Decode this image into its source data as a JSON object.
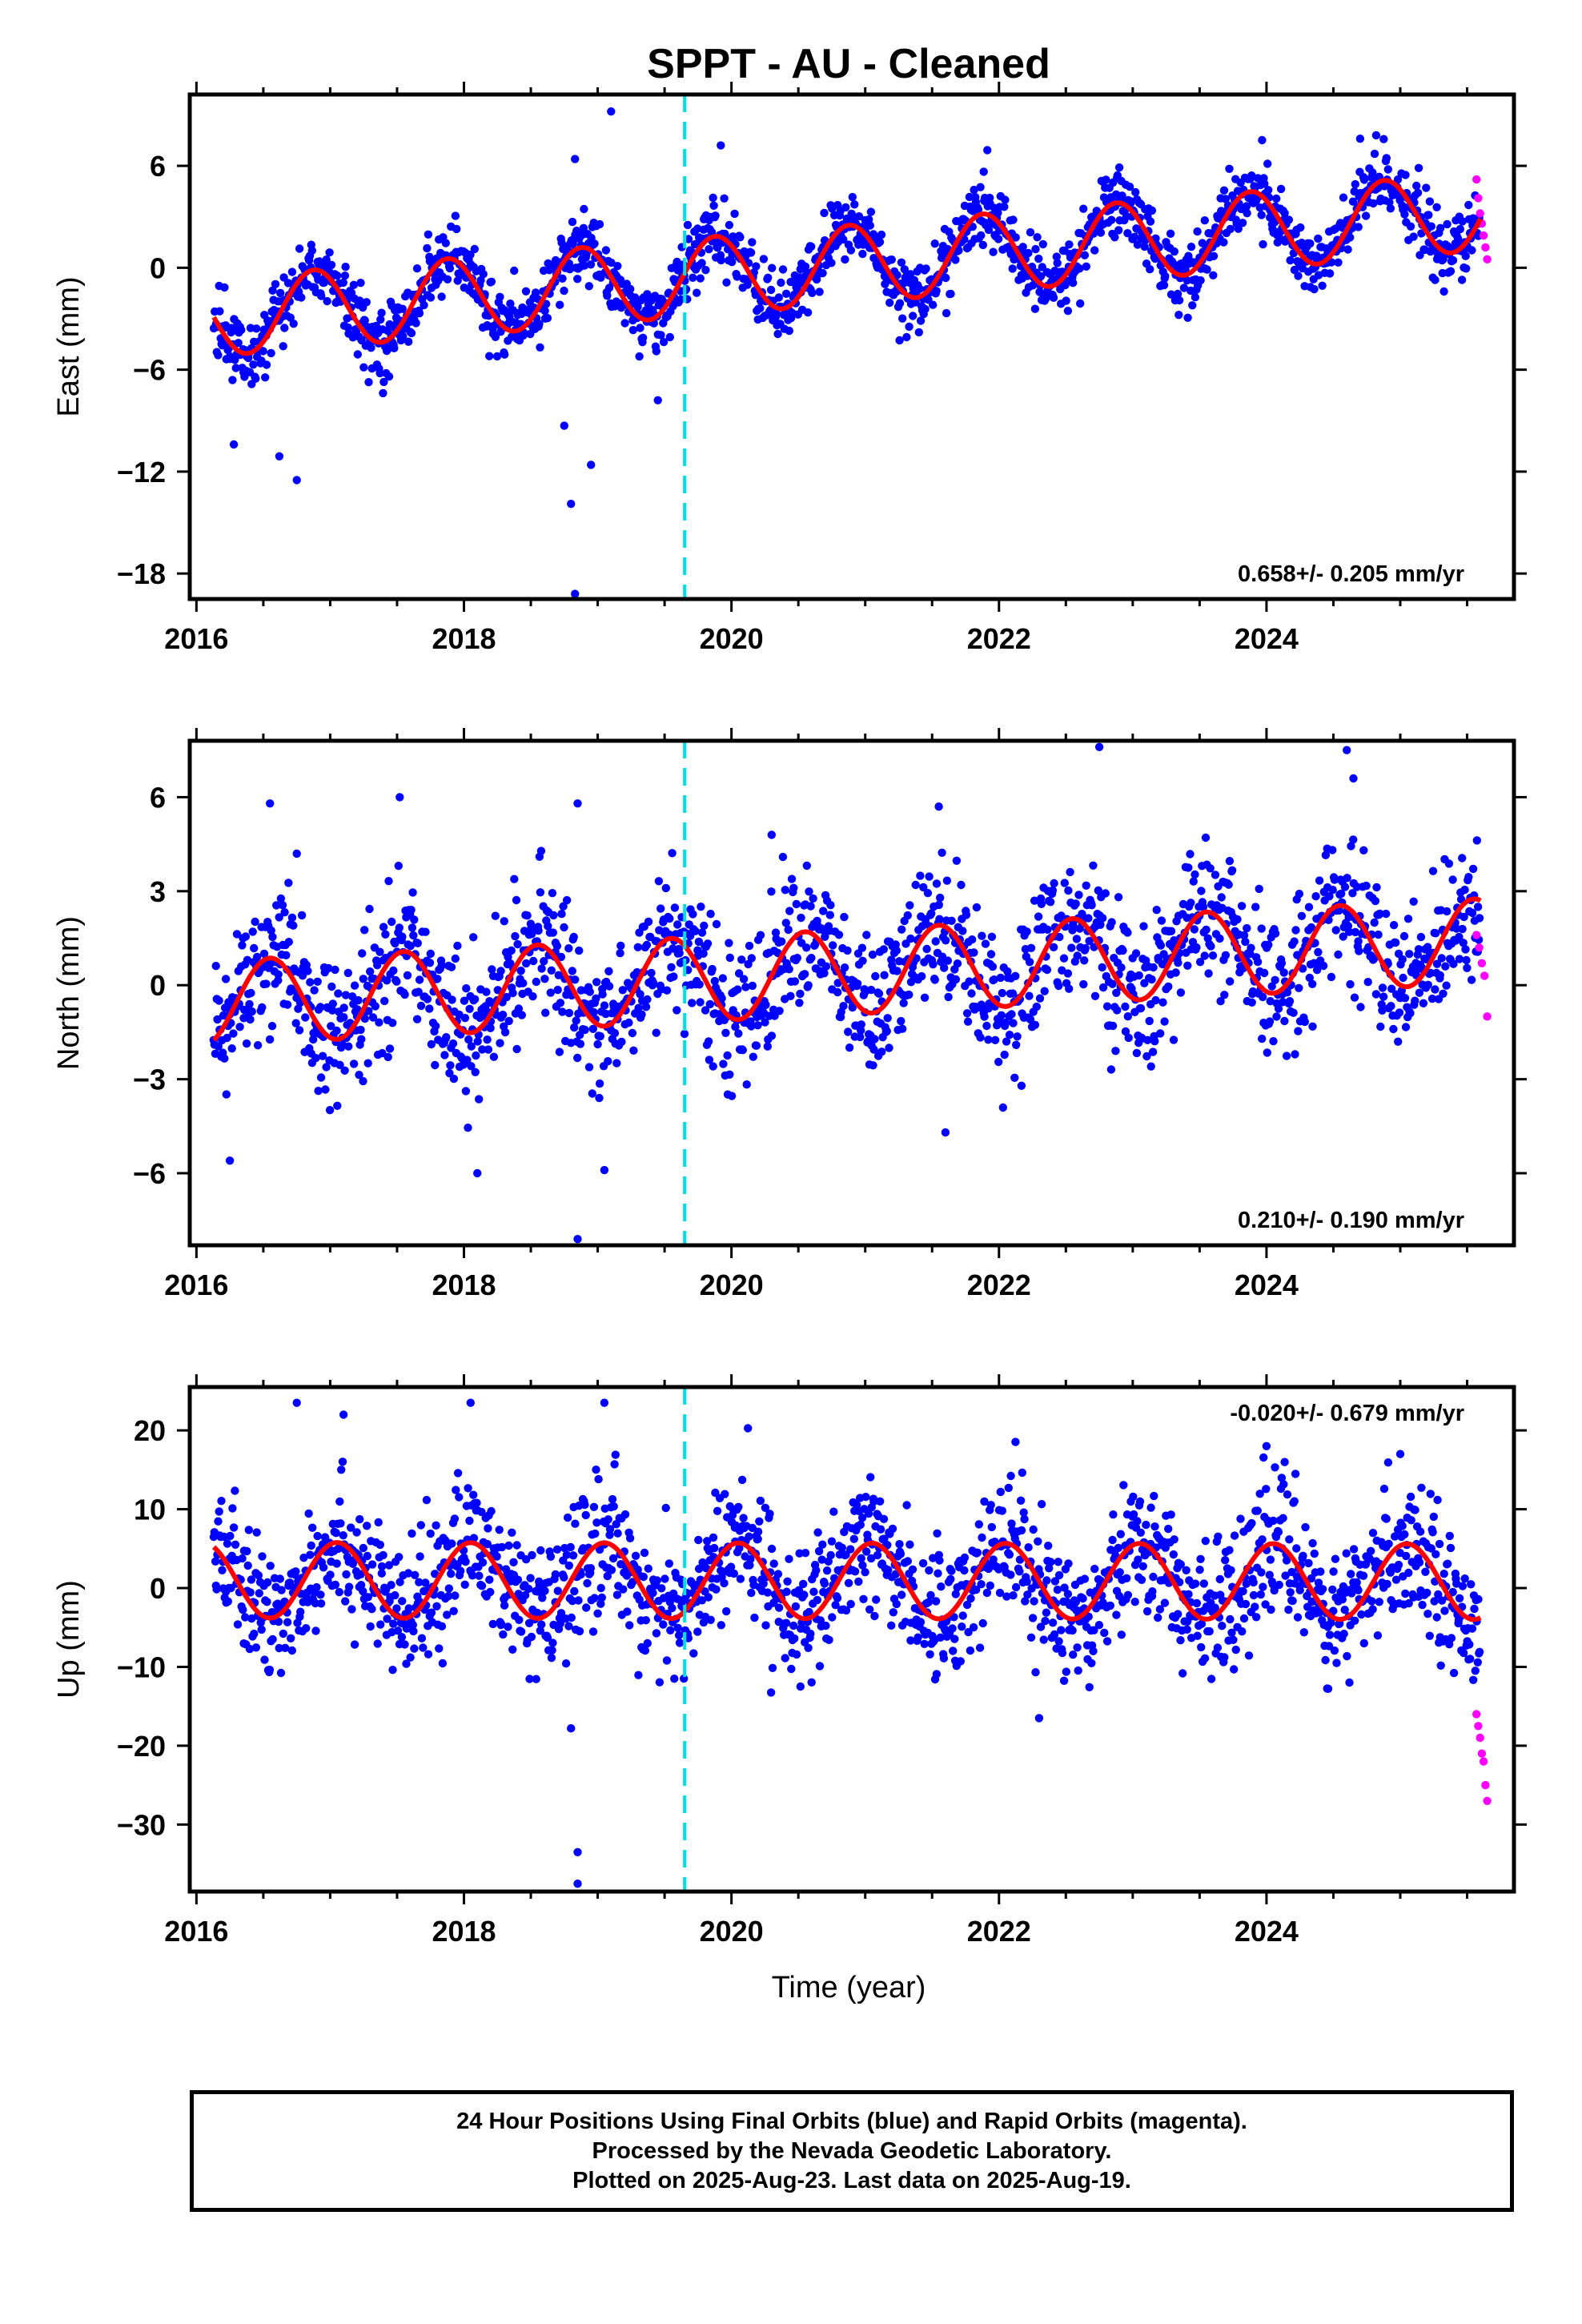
{
  "title": "SPPT  - AU - Cleaned",
  "xlabel": "Time (year)",
  "footer": {
    "lines": [
      "24 Hour Positions Using Final Orbits (blue) and Rapid Orbits (magenta).",
      "Processed by the Nevada Geodetic Laboratory.",
      "Plotted on 2025-Aug-23. Last data on 2025-Aug-19."
    ]
  },
  "colors": {
    "final_orbits": "#0000ff",
    "rapid_orbits": "#ff00ff",
    "model_fit": "#ff0000",
    "equipment_change": "#00e0e0"
  },
  "chart_data": [
    {
      "type": "scatter",
      "ylabel": "East (mm)",
      "xlim": [
        2015.95,
        2025.85
      ],
      "ylim": [
        -19.5,
        10.2
      ],
      "xticks": [
        2016,
        2018,
        2020,
        2022,
        2024
      ],
      "yticks": [
        -18,
        -12,
        -6,
        0,
        6
      ],
      "ytick_labels": [
        "−18",
        "−12",
        "−6",
        "0",
        "6"
      ],
      "rate_label": "0.658+/- 0.205 mm/yr",
      "rate_position": "bottom-right",
      "equipment_change_year": 2019.65,
      "model": {
        "rate": 0.658,
        "offset": -3.0,
        "amplitude": 2.3,
        "phase_peak_year_fraction": 0.88
      },
      "data_span": [
        2016.13,
        2025.6
      ],
      "rapid_span": [
        2025.55,
        2025.63
      ],
      "rapid_values": [
        5.2,
        4.1,
        3.2,
        2.6,
        1.9,
        1.2,
        0.5
      ],
      "scatter_sd": 1.0,
      "outliers": [
        {
          "x": 2016.28,
          "y": -10.4
        },
        {
          "x": 2016.75,
          "y": -12.5
        },
        {
          "x": 2016.62,
          "y": -11.1
        },
        {
          "x": 2018.75,
          "y": -9.3
        },
        {
          "x": 2018.95,
          "y": -11.6
        },
        {
          "x": 2018.8,
          "y": -13.9
        },
        {
          "x": 2018.83,
          "y": -19.2
        },
        {
          "x": 2019.45,
          "y": -7.8
        },
        {
          "x": 2019.1,
          "y": 9.2
        },
        {
          "x": 2019.92,
          "y": 7.2
        },
        {
          "x": 2024.7,
          "y": 7.6
        },
        {
          "x": 2024.82,
          "y": 7.8
        },
        {
          "x": 2018.83,
          "y": 6.4
        },
        {
          "x": 2022.9,
          "y": 5.9
        }
      ]
    },
    {
      "type": "scatter",
      "ylabel": "North (mm)",
      "xlim": [
        2015.95,
        2025.85
      ],
      "ylim": [
        -8.3,
        7.8
      ],
      "xticks": [
        2016,
        2018,
        2020,
        2022,
        2024
      ],
      "yticks": [
        -6,
        -3,
        0,
        3,
        6
      ],
      "ytick_labels": [
        "−6",
        "−3",
        "0",
        "3",
        "6"
      ],
      "rate_label": "0.210+/- 0.190 mm/yr",
      "rate_position": "bottom-right",
      "equipment_change_year": 2019.65,
      "model": {
        "rate": 0.21,
        "offset": -0.6,
        "amplitude": 1.35,
        "phase_peak_year_fraction": 0.55
      },
      "data_span": [
        2016.13,
        2025.6
      ],
      "rapid_span": [
        2025.55,
        2025.63
      ],
      "rapid_values": [
        1.6,
        1.2,
        0.7,
        0.3,
        -1.0
      ],
      "scatter_sd": 1.1,
      "outliers": [
        {
          "x": 2016.55,
          "y": 5.8
        },
        {
          "x": 2016.75,
          "y": 4.2
        },
        {
          "x": 2017.52,
          "y": 6.0
        },
        {
          "x": 2018.85,
          "y": 5.8
        },
        {
          "x": 2018.1,
          "y": -6.0
        },
        {
          "x": 2018.85,
          "y": -8.1
        },
        {
          "x": 2019.05,
          "y": -5.9
        },
        {
          "x": 2016.25,
          "y": -5.6
        },
        {
          "x": 2020.3,
          "y": 4.8
        },
        {
          "x": 2021.55,
          "y": 5.7
        },
        {
          "x": 2022.75,
          "y": 7.6
        },
        {
          "x": 2024.6,
          "y": 7.5
        },
        {
          "x": 2024.65,
          "y": 6.6
        },
        {
          "x": 2021.6,
          "y": -4.7
        }
      ]
    },
    {
      "type": "scatter",
      "ylabel": "Up (mm)",
      "xlim": [
        2015.95,
        2025.85
      ],
      "ylim": [
        -38.5,
        25.5
      ],
      "xticks": [
        2016,
        2018,
        2020,
        2022,
        2024
      ],
      "yticks": [
        -30,
        -20,
        -10,
        0,
        10,
        20
      ],
      "ytick_labels": [
        "−30",
        "−20",
        "−10",
        "0",
        "10",
        "20"
      ],
      "rate_label": "-0.020+/- 0.679 mm/yr",
      "rate_position": "top-right",
      "equipment_change_year": 2019.65,
      "model": {
        "rate": -0.02,
        "offset": 1.0,
        "amplitude": 4.8,
        "phase_peak_year_fraction": 0.05
      },
      "data_span": [
        2016.13,
        2025.6
      ],
      "rapid_span": [
        2025.55,
        2025.63
      ],
      "rapid_values": [
        -16.0,
        -17.5,
        -19.0,
        -21.0,
        -22.0,
        -25.0,
        -27.0
      ],
      "scatter_sd": 4.2,
      "outliers": [
        {
          "x": 2016.75,
          "y": 23.5
        },
        {
          "x": 2017.1,
          "y": 22.0
        },
        {
          "x": 2018.05,
          "y": 23.5
        },
        {
          "x": 2019.05,
          "y": 23.5
        },
        {
          "x": 2018.85,
          "y": -33.5
        },
        {
          "x": 2018.85,
          "y": -37.5
        },
        {
          "x": 2018.8,
          "y": -17.8
        },
        {
          "x": 2024.0,
          "y": 18.0
        },
        {
          "x": 2025.0,
          "y": 17.0
        },
        {
          "x": 2022.3,
          "y": -16.5
        }
      ]
    }
  ]
}
